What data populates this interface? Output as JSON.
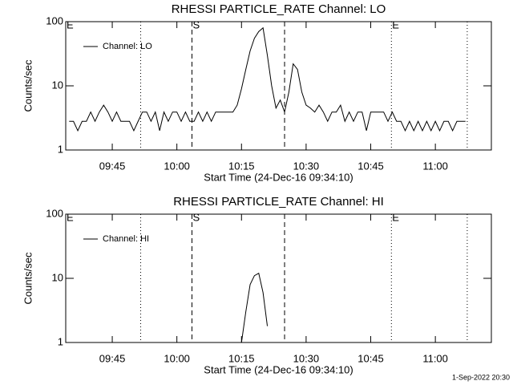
{
  "chart_data": [
    {
      "type": "line",
      "title": "RHESSI PARTICLE_RATE Channel: LO",
      "xlabel": "Start Time (24-Dec-16 09:34:10)",
      "ylabel": "Counts/sec",
      "yscale": "log",
      "legend": "upper left",
      "xlim": [
        574.2,
        673
      ],
      "ylim": [
        1,
        100
      ],
      "yticks": [
        1,
        10,
        100
      ],
      "xticks": [
        {
          "value": 585,
          "label": "09:45"
        },
        {
          "value": 600,
          "label": "10:00"
        },
        {
          "value": 615,
          "label": "10:15"
        },
        {
          "value": 630,
          "label": "10:30"
        },
        {
          "value": 645,
          "label": "10:45"
        },
        {
          "value": 660,
          "label": "11:00"
        }
      ],
      "markers": [
        {
          "x": 574.2,
          "style": "dotted",
          "label": "E"
        },
        {
          "x": 591.6,
          "style": "dotted"
        },
        {
          "x": 603.5,
          "style": "dashed",
          "label": "S"
        },
        {
          "x": 625,
          "style": "dashed"
        },
        {
          "x": 649.8,
          "style": "dotted",
          "label": "E"
        },
        {
          "x": 667.4,
          "style": "dotted"
        }
      ],
      "x": [
        575,
        576,
        577,
        578,
        579,
        580,
        581,
        582,
        583,
        584,
        585,
        586,
        587,
        588,
        589,
        590,
        591,
        592,
        593,
        594,
        595,
        596,
        597,
        598,
        599,
        600,
        601,
        602,
        603,
        604,
        605,
        606,
        607,
        608,
        609,
        610,
        611,
        612,
        613,
        614,
        615,
        616,
        617,
        618,
        619,
        620,
        621,
        622,
        623,
        624,
        625,
        626,
        627,
        628,
        629,
        630,
        631,
        632,
        633,
        634,
        635,
        636,
        637,
        638,
        639,
        640,
        641,
        642,
        643,
        644,
        645,
        646,
        647,
        648,
        649,
        650,
        651,
        652,
        653,
        654,
        655,
        656,
        657,
        658,
        659,
        660,
        661,
        662,
        663,
        664,
        665,
        666,
        667
      ],
      "series": [
        {
          "name": "Channel: LO",
          "color": "#000000",
          "values": [
            2.8,
            2.8,
            2,
            2.8,
            2.8,
            3.9,
            2.8,
            3.9,
            5,
            3.9,
            2.8,
            3.9,
            2.8,
            2.8,
            2.8,
            2,
            2.8,
            3.9,
            3.9,
            2.8,
            3.9,
            2,
            3.9,
            2.8,
            3.9,
            3.9,
            2.8,
            3.9,
            2.8,
            2.8,
            3.9,
            2.8,
            3.9,
            2.8,
            3.9,
            3.9,
            3.9,
            3.9,
            3.9,
            5,
            9,
            18,
            35,
            55,
            70,
            80,
            30,
            10,
            4.5,
            6,
            3.9,
            8,
            22,
            18,
            8,
            5,
            4.5,
            3.9,
            5,
            3.9,
            2.8,
            3.9,
            3.9,
            5,
            2.8,
            3.9,
            2.8,
            3.9,
            3.9,
            2,
            3.9,
            3.9,
            3.9,
            3.9,
            2.8,
            3.9,
            2.8,
            2.8,
            2,
            2.8,
            2,
            2.8,
            2,
            2.8,
            2,
            2.8,
            2,
            2.8,
            2.8,
            2,
            2.8,
            2.8,
            2.8
          ]
        }
      ]
    },
    {
      "type": "line",
      "title": "RHESSI PARTICLE_RATE Channel: HI",
      "xlabel": "Start Time (24-Dec-16 09:34:10)",
      "ylabel": "Counts/sec",
      "yscale": "log",
      "legend": "upper left",
      "xlim": [
        574.2,
        673
      ],
      "ylim": [
        1,
        100
      ],
      "yticks": [
        1,
        10,
        100
      ],
      "xticks": [
        {
          "value": 585,
          "label": "09:45"
        },
        {
          "value": 600,
          "label": "10:00"
        },
        {
          "value": 615,
          "label": "10:15"
        },
        {
          "value": 630,
          "label": "10:30"
        },
        {
          "value": 645,
          "label": "10:45"
        },
        {
          "value": 660,
          "label": "11:00"
        }
      ],
      "markers": [
        {
          "x": 574.2,
          "style": "dotted",
          "label": "E"
        },
        {
          "x": 591.6,
          "style": "dotted"
        },
        {
          "x": 603.5,
          "style": "dashed",
          "label": "S"
        },
        {
          "x": 625,
          "style": "dashed"
        },
        {
          "x": 649.8,
          "style": "dotted",
          "label": "E"
        },
        {
          "x": 667.4,
          "style": "dotted"
        }
      ],
      "x": [
        615,
        616,
        617,
        618,
        619,
        620,
        621
      ],
      "series": [
        {
          "name": "Channel: HI",
          "color": "#000000",
          "values": [
            1,
            3,
            8,
            11,
            12,
            6,
            1.8
          ]
        }
      ]
    }
  ],
  "footer": "1-Sep-2022 20:30"
}
